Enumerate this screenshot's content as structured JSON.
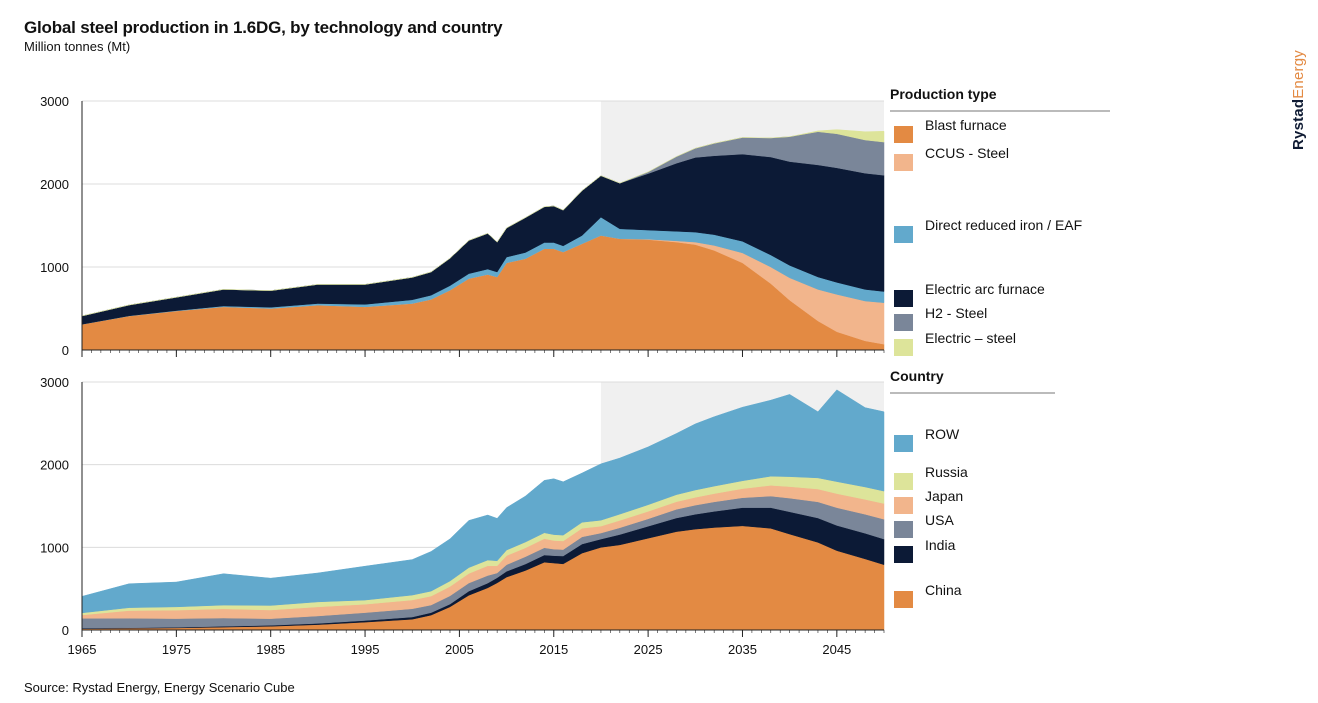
{
  "title": "Global steel production in 1.6DG, by technology and country",
  "subtitle": "Million tonnes (Mt)",
  "source": "Source: Rystad Energy, Energy Scenario Cube",
  "brand": {
    "part1": "Rystad",
    "part2": "Energy"
  },
  "chart_data": [
    {
      "type": "area",
      "stacked": true,
      "legend_title": "Production type",
      "x_ticks": [
        1965,
        1975,
        1985,
        1995,
        2005,
        2015,
        2025,
        2035,
        2045
      ],
      "y_ticks": [
        0,
        1000,
        2000,
        3000
      ],
      "xlim": [
        1965,
        2050
      ],
      "ylim": [
        0,
        3000
      ],
      "forecast_shading_from": 2020,
      "x": [
        1965,
        1970,
        1975,
        1980,
        1985,
        1990,
        1995,
        2000,
        2002,
        2004,
        2006,
        2008,
        2009,
        2010,
        2012,
        2014,
        2015,
        2016,
        2018,
        2020,
        2022,
        2025,
        2028,
        2030,
        2032,
        2035,
        2038,
        2040,
        2043,
        2045,
        2048,
        2050
      ],
      "series": [
        {
          "name": "Blast furnace",
          "color": "#e38a43",
          "values": [
            310,
            410,
            470,
            520,
            500,
            540,
            520,
            560,
            610,
            720,
            860,
            910,
            880,
            1050,
            1100,
            1220,
            1220,
            1180,
            1280,
            1380,
            1340,
            1330,
            1300,
            1270,
            1200,
            1050,
            800,
            600,
            350,
            220,
            110,
            70
          ]
        },
        {
          "name": "CCUS - Steel",
          "color": "#f2b58c",
          "values": [
            0,
            0,
            0,
            0,
            0,
            0,
            0,
            0,
            0,
            0,
            0,
            0,
            0,
            0,
            0,
            0,
            0,
            0,
            0,
            0,
            0,
            5,
            15,
            30,
            60,
            120,
            200,
            270,
            380,
            450,
            480,
            500
          ]
        },
        {
          "name": "Direct reduced iron / EAF",
          "color": "#62a9cc",
          "values": [
            0,
            2,
            5,
            10,
            15,
            20,
            30,
            45,
            50,
            55,
            60,
            65,
            60,
            70,
            75,
            75,
            75,
            75,
            100,
            220,
            120,
            110,
            115,
            120,
            130,
            140,
            145,
            150,
            150,
            145,
            140,
            135
          ]
        },
        {
          "name": "Electric arc furnace",
          "color": "#0c1a36",
          "values": [
            100,
            130,
            160,
            200,
            200,
            230,
            240,
            270,
            280,
            330,
            400,
            430,
            360,
            350,
            420,
            430,
            440,
            430,
            540,
            500,
            550,
            680,
            820,
            900,
            950,
            1050,
            1180,
            1250,
            1350,
            1380,
            1400,
            1400
          ]
        },
        {
          "name": "H2 - Steel",
          "color": "#7a8699",
          "values": [
            0,
            0,
            0,
            0,
            0,
            0,
            0,
            0,
            0,
            0,
            0,
            0,
            0,
            0,
            0,
            0,
            0,
            0,
            0,
            0,
            0,
            20,
            80,
            110,
            150,
            200,
            230,
            300,
            400,
            410,
            400,
            400
          ]
        },
        {
          "name": "Electric – steel",
          "color": "#dde49a",
          "values": [
            0,
            0,
            0,
            0,
            0,
            0,
            0,
            0,
            0,
            0,
            0,
            0,
            0,
            0,
            0,
            0,
            0,
            0,
            0,
            0,
            0,
            0,
            0,
            0,
            0,
            0,
            0,
            0,
            10,
            50,
            100,
            130
          ]
        }
      ]
    },
    {
      "type": "area",
      "stacked": true,
      "legend_title": "Country",
      "x_ticks": [
        1965,
        1975,
        1985,
        1995,
        2005,
        2015,
        2025,
        2035,
        2045
      ],
      "y_ticks": [
        0,
        1000,
        2000,
        3000
      ],
      "xlim": [
        1965,
        2050
      ],
      "ylim": [
        0,
        3000
      ],
      "forecast_shading_from": 2020,
      "x": [
        1965,
        1970,
        1975,
        1980,
        1985,
        1990,
        1995,
        2000,
        2002,
        2004,
        2006,
        2008,
        2009,
        2010,
        2012,
        2014,
        2015,
        2016,
        2018,
        2020,
        2022,
        2025,
        2028,
        2030,
        2032,
        2035,
        2038,
        2040,
        2043,
        2045,
        2048,
        2050
      ],
      "series": [
        {
          "name": "China",
          "color": "#e38a43",
          "values": [
            15,
            20,
            25,
            35,
            45,
            65,
            95,
            130,
            180,
            280,
            420,
            510,
            570,
            640,
            720,
            820,
            810,
            800,
            930,
            1000,
            1030,
            1110,
            1190,
            1220,
            1240,
            1260,
            1230,
            1160,
            1060,
            960,
            860,
            790
          ]
        },
        {
          "name": "India",
          "color": "#0c1a36",
          "values": [
            6,
            7,
            8,
            10,
            12,
            15,
            20,
            27,
            30,
            33,
            50,
            57,
            62,
            70,
            78,
            87,
            89,
            95,
            110,
            100,
            125,
            145,
            165,
            180,
            195,
            220,
            250,
            270,
            295,
            305,
            310,
            310
          ]
        },
        {
          "name": "USA",
          "color": "#7a8699",
          "values": [
            120,
            115,
            105,
            100,
            80,
            90,
            95,
            100,
            92,
            100,
            98,
            92,
            58,
            80,
            89,
            88,
            79,
            78,
            87,
            73,
            82,
            90,
            105,
            110,
            115,
            120,
            140,
            165,
            195,
            215,
            230,
            240
          ]
        },
        {
          "name": "Japan",
          "color": "#f2b58c",
          "values": [
            41,
            93,
            102,
            111,
            105,
            110,
            102,
            106,
            108,
            113,
            116,
            118,
            87,
            110,
            107,
            110,
            105,
            104,
            104,
            83,
            89,
            90,
            92,
            95,
            100,
            110,
            130,
            140,
            155,
            170,
            180,
            190
          ]
        },
        {
          "name": "Russia",
          "color": "#dde49a",
          "values": [
            25,
            35,
            40,
            45,
            55,
            60,
            50,
            59,
            60,
            66,
            71,
            69,
            60,
            67,
            70,
            71,
            71,
            70,
            72,
            72,
            75,
            80,
            85,
            88,
            90,
            95,
            110,
            120,
            135,
            145,
            150,
            150
          ]
        },
        {
          "name": "ROW",
          "color": "#62a9cc",
          "values": [
            200,
            290,
            300,
            380,
            330,
            350,
            410,
            430,
            480,
            510,
            570,
            545,
            513,
            513,
            556,
            634,
            676,
            646,
            596,
            682,
            679,
            700,
            740,
            800,
            840,
            890,
            920,
            995,
            800,
            1110,
            960,
            960
          ]
        }
      ]
    }
  ]
}
